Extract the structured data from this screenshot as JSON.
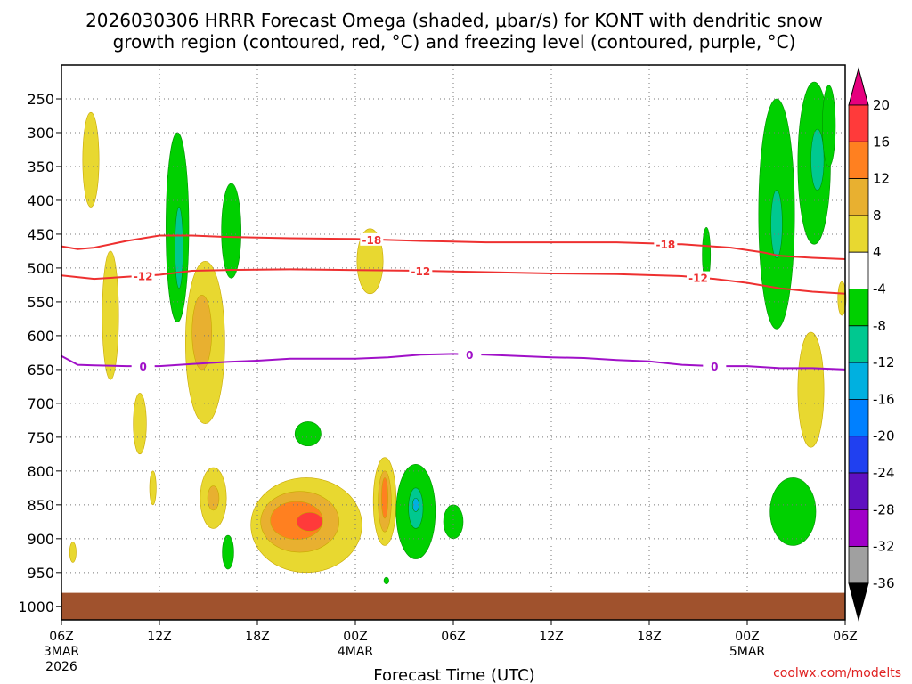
{
  "chart_data": {
    "type": "heatmap",
    "title_line1": "2026030306 HRRR Forecast Omega (shaded, μbar/s) for KONT with dendritic snow",
    "title_line2": "growth region (contoured, red, °C) and freezing level (contoured, purple, °C)",
    "xlabel": "Forecast Time (UTC)",
    "credit": "coolwx.com/modelts",
    "x_hours_range": [
      0,
      48
    ],
    "x_ticks": [
      {
        "h": 0,
        "label": "06Z",
        "sub1": "3MAR",
        "sub2": "2026"
      },
      {
        "h": 6,
        "label": "12Z",
        "sub1": "",
        "sub2": ""
      },
      {
        "h": 12,
        "label": "18Z",
        "sub1": "",
        "sub2": ""
      },
      {
        "h": 18,
        "label": "00Z",
        "sub1": "4MAR",
        "sub2": ""
      },
      {
        "h": 24,
        "label": "06Z",
        "sub1": "",
        "sub2": ""
      },
      {
        "h": 30,
        "label": "12Z",
        "sub1": "",
        "sub2": ""
      },
      {
        "h": 36,
        "label": "18Z",
        "sub1": "",
        "sub2": ""
      },
      {
        "h": 42,
        "label": "00Z",
        "sub1": "5MAR",
        "sub2": ""
      },
      {
        "h": 48,
        "label": "06Z",
        "sub1": "",
        "sub2": ""
      }
    ],
    "y_range_hpa": [
      200,
      1020
    ],
    "y_ticks": [
      "250",
      "300",
      "350",
      "400",
      "450",
      "500",
      "550",
      "600",
      "650",
      "700",
      "750",
      "800",
      "850",
      "900",
      "950",
      "1000"
    ],
    "colorbar": {
      "labels": [
        "20",
        "16",
        "12",
        "8",
        "4",
        "-4",
        "-8",
        "-12",
        "-16",
        "-20",
        "-24",
        "-28",
        "-32",
        "-36"
      ],
      "colors": [
        "#e6007e",
        "#ff3a3a",
        "#ff8020",
        "#e8b030",
        "#e8d830",
        "#ffffff",
        "#00d000",
        "#00c890",
        "#00b0e0",
        "#0080ff",
        "#2040f0",
        "#6010c0",
        "#a000c8",
        "#a0a0a0",
        "#000000"
      ]
    },
    "ground": {
      "color": "#a0522d",
      "top_hpa": 980
    },
    "contours": [
      {
        "name": "minus18",
        "label": "-18",
        "color": "#ee3030",
        "points": [
          [
            0,
            468
          ],
          [
            1,
            472
          ],
          [
            2,
            470
          ],
          [
            4,
            460
          ],
          [
            6,
            452
          ],
          [
            8,
            452
          ],
          [
            10,
            454
          ],
          [
            14,
            456
          ],
          [
            18,
            457
          ],
          [
            22,
            460
          ],
          [
            26,
            462
          ],
          [
            30,
            462
          ],
          [
            34,
            462
          ],
          [
            38,
            465
          ],
          [
            41,
            470
          ],
          [
            43,
            477
          ],
          [
            44,
            482
          ],
          [
            46,
            485
          ],
          [
            48,
            487
          ]
        ],
        "label_hours": [
          19,
          37
        ]
      },
      {
        "name": "minus12",
        "label": "-12",
        "color": "#ee3030",
        "points": [
          [
            0,
            511
          ],
          [
            2,
            516
          ],
          [
            4,
            513
          ],
          [
            6,
            510
          ],
          [
            8,
            504
          ],
          [
            10,
            503
          ],
          [
            14,
            502
          ],
          [
            18,
            503
          ],
          [
            22,
            504
          ],
          [
            26,
            506
          ],
          [
            30,
            508
          ],
          [
            34,
            509
          ],
          [
            38,
            512
          ],
          [
            40,
            516
          ],
          [
            42,
            522
          ],
          [
            44,
            530
          ],
          [
            46,
            535
          ],
          [
            48,
            538
          ]
        ],
        "label_hours": [
          5,
          22,
          39
        ]
      },
      {
        "name": "zero",
        "label": "0",
        "color": "#a010c8",
        "points": [
          [
            0,
            630
          ],
          [
            1,
            643
          ],
          [
            2,
            644
          ],
          [
            4,
            645
          ],
          [
            6,
            645
          ],
          [
            8,
            642
          ],
          [
            10,
            639
          ],
          [
            12,
            637
          ],
          [
            14,
            634
          ],
          [
            16,
            634
          ],
          [
            18,
            634
          ],
          [
            20,
            632
          ],
          [
            22,
            628
          ],
          [
            24,
            627
          ],
          [
            26,
            628
          ],
          [
            28,
            630
          ],
          [
            30,
            632
          ],
          [
            32,
            633
          ],
          [
            34,
            636
          ],
          [
            36,
            638
          ],
          [
            38,
            643
          ],
          [
            40,
            645
          ],
          [
            42,
            645
          ],
          [
            44,
            648
          ],
          [
            46,
            648
          ],
          [
            48,
            650
          ]
        ],
        "label_hours": [
          5,
          25,
          40
        ]
      }
    ],
    "omega_blobs": [
      {
        "value": 4,
        "h": 1.8,
        "p": 340,
        "wh": 0.5,
        "wp": 70
      },
      {
        "value": 4,
        "h": 0.7,
        "p": 920,
        "wh": 0.2,
        "wp": 15
      },
      {
        "value": 4,
        "h": 3.0,
        "p": 570,
        "wh": 0.5,
        "wp": 95
      },
      {
        "value": 4,
        "h": 4.8,
        "p": 730,
        "wh": 0.4,
        "wp": 45
      },
      {
        "value": 4,
        "h": 5.6,
        "p": 825,
        "wh": 0.2,
        "wp": 25
      },
      {
        "value": -4,
        "h": 7.1,
        "p": 440,
        "wh": 0.7,
        "wp": 140
      },
      {
        "value": -8,
        "h": 7.2,
        "p": 470,
        "wh": 0.25,
        "wp": 60
      },
      {
        "value": 4,
        "h": 8.8,
        "p": 610,
        "wh": 1.2,
        "wp": 120
      },
      {
        "value": 8,
        "h": 8.6,
        "p": 595,
        "wh": 0.6,
        "wp": 55
      },
      {
        "value": -4,
        "h": 10.4,
        "p": 445,
        "wh": 0.6,
        "wp": 70
      },
      {
        "value": 4,
        "h": 9.3,
        "p": 840,
        "wh": 0.8,
        "wp": 45
      },
      {
        "value": 8,
        "h": 9.3,
        "p": 840,
        "wh": 0.35,
        "wp": 18
      },
      {
        "value": -4,
        "h": 10.2,
        "p": 920,
        "wh": 0.35,
        "wp": 25
      },
      {
        "value": 4,
        "h": 15.0,
        "p": 880,
        "wh": 3.4,
        "wp": 70
      },
      {
        "value": 8,
        "h": 14.6,
        "p": 875,
        "wh": 2.4,
        "wp": 45
      },
      {
        "value": 12,
        "h": 14.4,
        "p": 873,
        "wh": 1.6,
        "wp": 28
      },
      {
        "value": 16,
        "h": 15.2,
        "p": 875,
        "wh": 0.8,
        "wp": 14
      },
      {
        "value": -4,
        "h": 15.1,
        "p": 745,
        "wh": 0.8,
        "wp": 18
      },
      {
        "value": 4,
        "h": 18.9,
        "p": 490,
        "wh": 0.8,
        "wp": 48
      },
      {
        "value": 4,
        "h": 19.8,
        "p": 845,
        "wh": 0.7,
        "wp": 65
      },
      {
        "value": 8,
        "h": 19.8,
        "p": 845,
        "wh": 0.4,
        "wp": 45
      },
      {
        "value": 12,
        "h": 19.8,
        "p": 840,
        "wh": 0.2,
        "wp": 30
      },
      {
        "value": -4,
        "h": 21.7,
        "p": 860,
        "wh": 1.2,
        "wp": 70
      },
      {
        "value": -8,
        "h": 21.7,
        "p": 855,
        "wh": 0.45,
        "wp": 30
      },
      {
        "value": -12,
        "h": 21.7,
        "p": 850,
        "wh": 0.2,
        "wp": 10
      },
      {
        "value": -4,
        "h": 24.0,
        "p": 875,
        "wh": 0.6,
        "wp": 25
      },
      {
        "value": -4,
        "h": 19.9,
        "p": 962,
        "wh": 0.15,
        "wp": 5
      },
      {
        "value": -4,
        "h": 39.5,
        "p": 480,
        "wh": 0.25,
        "wp": 40
      },
      {
        "value": -4,
        "h": 43.8,
        "p": 420,
        "wh": 1.1,
        "wp": 170
      },
      {
        "value": -8,
        "h": 43.8,
        "p": 435,
        "wh": 0.35,
        "wp": 50
      },
      {
        "value": -4,
        "h": 46.1,
        "p": 345,
        "wh": 1.0,
        "wp": 120
      },
      {
        "value": -8,
        "h": 46.3,
        "p": 340,
        "wh": 0.4,
        "wp": 45
      },
      {
        "value": -4,
        "h": 47.0,
        "p": 290,
        "wh": 0.4,
        "wp": 60
      },
      {
        "value": 4,
        "h": 45.9,
        "p": 680,
        "wh": 0.8,
        "wp": 85
      },
      {
        "value": 4,
        "h": 47.8,
        "p": 545,
        "wh": 0.25,
        "wp": 25
      },
      {
        "value": -4,
        "h": 44.8,
        "p": 860,
        "wh": 1.4,
        "wp": 50
      }
    ]
  }
}
